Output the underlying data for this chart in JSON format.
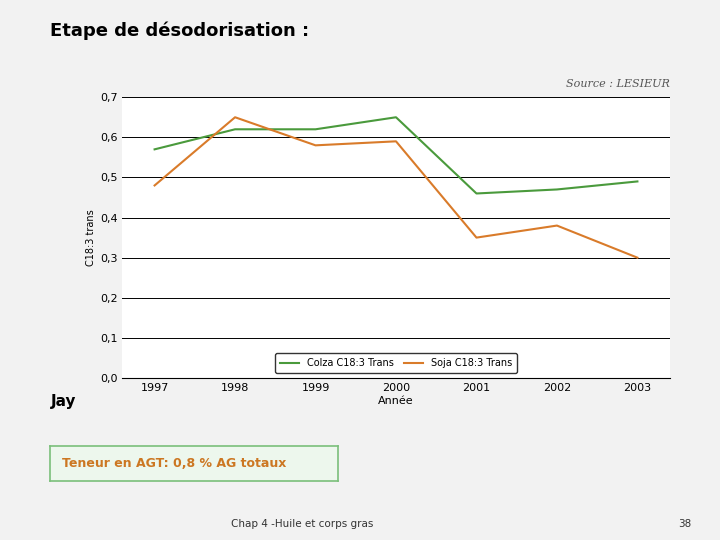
{
  "title": "Etape de désodorisation :",
  "source_text": "Source : LESIEUR",
  "xlabel": "Année",
  "ylabel": "C18:3 trans",
  "years": [
    1997,
    1998,
    1999,
    2000,
    2001,
    2002,
    2003
  ],
  "colza": [
    0.57,
    0.62,
    0.62,
    0.65,
    0.46,
    0.47,
    0.49
  ],
  "soja": [
    0.48,
    0.65,
    0.58,
    0.59,
    0.35,
    0.38,
    0.3
  ],
  "colza_color": "#4a9a3c",
  "soja_color": "#d97b2a",
  "colza_label": "Colza C18:3 Trans",
  "soja_label": "Soja C18:3 Trans",
  "ylim": [
    0,
    0.7
  ],
  "yticks": [
    0,
    0.1,
    0.2,
    0.3,
    0.4,
    0.5,
    0.6,
    0.7
  ],
  "footer_text": "Chap 4 -Huile et corps gras",
  "page_number": "38",
  "annotation_text": "Teneur en AGT: 0,8 % AG totaux",
  "annotation_color": "#cc7722",
  "annotation_box_edge": "#7abf7a",
  "annotation_box_fill": "#edf7ed",
  "jay_text": "Jay",
  "bg_color": "#f0f0f0",
  "chart_bg": "#ffffff",
  "slide_bg": "#f2f2f2"
}
